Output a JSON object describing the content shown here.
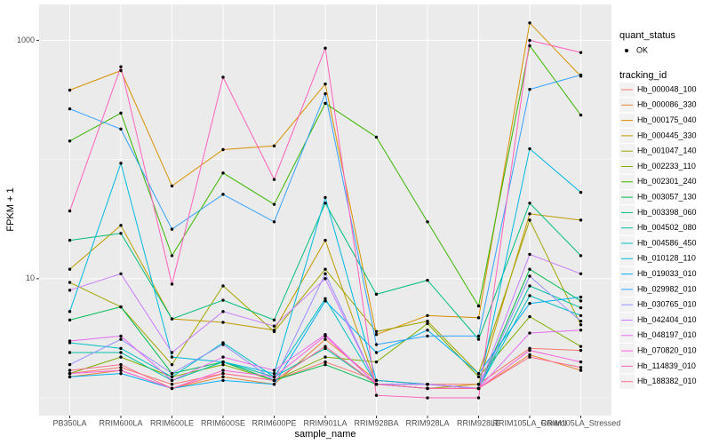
{
  "chart_data": {
    "type": "line",
    "x_label": "sample_name",
    "y_label": "FPKM + 1",
    "categories": [
      "PB350LA",
      "RRIM600LA",
      "RRIM600LE",
      "RRIM600SE",
      "RRIM600PE",
      "RRIM901LA",
      "RRIM928BA",
      "RRIM928LA",
      "RRIM928LE",
      "RRIM105LA_Control",
      "RRIM105LA_Stressed"
    ],
    "log_y": true,
    "ylim": [
      0.71,
      2000
    ],
    "yticks": [
      10,
      1000
    ],
    "y_minor_ticks": [
      1,
      100
    ],
    "grid": true,
    "point_legend_title": "quant_status",
    "point_legend_label": "OK",
    "legend_title": "tracking_id",
    "series": [
      {
        "name": "Hb_000048_100",
        "color": "#F8766D",
        "values": [
          1.6,
          1.8,
          1.3,
          1.6,
          1.4,
          2.0,
          1.4,
          1.3,
          1.3,
          2.6,
          2.5
        ]
      },
      {
        "name": "Hb_000086_330",
        "color": "#EA8331",
        "values": [
          1.5,
          1.7,
          1.2,
          1.5,
          1.3,
          3.1,
          1.4,
          1.3,
          1.2,
          2.3,
          1.7
        ]
      },
      {
        "name": "Hb_000175_040",
        "color": "#D89000",
        "values": [
          382,
          557,
          60,
          121,
          130,
          430,
          3.4,
          4.9,
          4.7,
          1400,
          500
        ]
      },
      {
        "name": "Hb_000445_330",
        "color": "#C09B00",
        "values": [
          12,
          28,
          4.6,
          4.3,
          3.7,
          21,
          1.3,
          1.2,
          1.3,
          35,
          31
        ]
      },
      {
        "name": "Hb_001047_140",
        "color": "#A3A500",
        "values": [
          9.3,
          5.8,
          1.9,
          8.7,
          3.6,
          12,
          3.6,
          4.4,
          1.6,
          31,
          4.1
        ]
      },
      {
        "name": "Hb_002233_110",
        "color": "#7CAE00",
        "values": [
          1.6,
          2.2,
          1.5,
          1.9,
          1.4,
          2.2,
          2.0,
          4.2,
          1.5,
          4.8,
          2.7
        ]
      },
      {
        "name": "Hb_002301_240",
        "color": "#39B600",
        "values": [
          143,
          245,
          15.6,
          77,
          42,
          296,
          154,
          30,
          5.9,
          900,
          236
        ]
      },
      {
        "name": "Hb_003057_130",
        "color": "#00BB4E",
        "values": [
          4.5,
          5.8,
          1.6,
          2.0,
          1.4,
          1.9,
          1.3,
          1.3,
          1.2,
          12,
          6.5
        ]
      },
      {
        "name": "Hb_003398_060",
        "color": "#00BF7D",
        "values": [
          21,
          24,
          4.6,
          6.6,
          4.5,
          43,
          7.4,
          9.7,
          3.1,
          43,
          15.6
        ]
      },
      {
        "name": "Hb_004502_080",
        "color": "#00C1A3",
        "values": [
          2.4,
          2.4,
          1.4,
          2.0,
          1.5,
          2.6,
          1.3,
          1.2,
          1.2,
          8.7,
          5.7
        ]
      },
      {
        "name": "Hb_004586_450",
        "color": "#00BFC4",
        "values": [
          2.9,
          2.6,
          1.5,
          2.9,
          1.5,
          6.8,
          1.3,
          1.2,
          1.2,
          7.2,
          4.9
        ]
      },
      {
        "name": "Hb_010128_110",
        "color": "#00BAE0",
        "values": [
          5.3,
          93,
          2.2,
          2.0,
          1.6,
          48,
          1.4,
          1.3,
          1.2,
          123,
          53
        ]
      },
      {
        "name": "Hb_019033_010",
        "color": "#00B0F6",
        "values": [
          1.5,
          1.6,
          1.2,
          1.4,
          1.3,
          6.5,
          2.4,
          3.7,
          1.6,
          6.2,
          7.0
        ]
      },
      {
        "name": "Hb_029982_010",
        "color": "#35A2FF",
        "values": [
          266,
          180,
          26,
          51,
          30,
          356,
          2.8,
          3.3,
          3.3,
          388,
          512
        ]
      },
      {
        "name": "Hb_030765_010",
        "color": "#9590FF",
        "values": [
          1.9,
          3.1,
          1.6,
          2.8,
          1.4,
          11,
          1.3,
          1.3,
          1.2,
          10.5,
          4.4
        ]
      },
      {
        "name": "Hb_042404_010",
        "color": "#C77CFF",
        "values": [
          8,
          11,
          2.4,
          5.3,
          4.0,
          10,
          1.3,
          1.3,
          1.2,
          16,
          11
        ]
      },
      {
        "name": "Hb_048197_010",
        "color": "#E76BF3",
        "values": [
          3.0,
          3.3,
          1.4,
          2.2,
          1.7,
          3.4,
          1.3,
          1.2,
          1.2,
          3.5,
          3.7
        ]
      },
      {
        "name": "Hb_070820_010",
        "color": "#FA62DB",
        "values": [
          1.6,
          1.7,
          1.2,
          1.7,
          1.5,
          3.3,
          1.3,
          1.2,
          1.2,
          2.5,
          2.0
        ]
      },
      {
        "name": "Hb_114839_010",
        "color": "#FF62BC",
        "values": [
          37,
          600,
          9,
          490,
          68,
          860,
          1.05,
          1.0,
          1.0,
          1000,
          790
        ]
      },
      {
        "name": "Hb_188382_010",
        "color": "#FF6C91",
        "values": [
          1.7,
          1.9,
          1.2,
          1.6,
          1.4,
          2.7,
          1.3,
          1.2,
          1.2,
          2.2,
          1.8
        ]
      }
    ]
  }
}
